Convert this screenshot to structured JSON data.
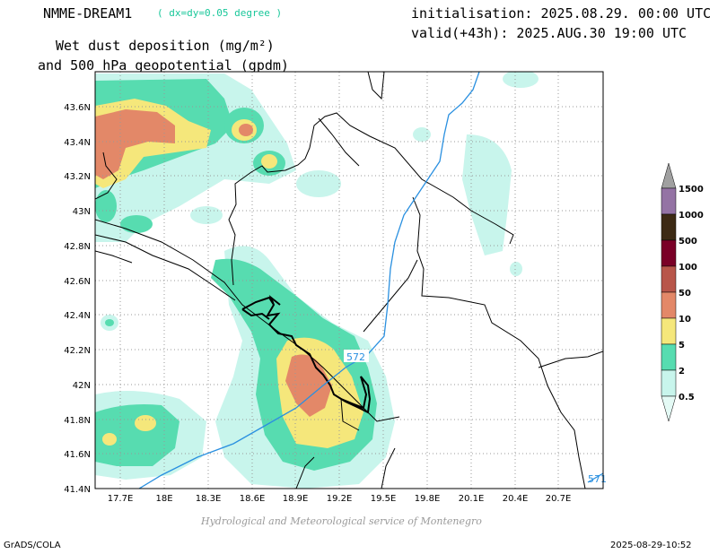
{
  "header": {
    "model": "NMME-DREAM1",
    "resolution": "( dx=dy=0.05 degree )",
    "initialisation": "initialisation: 2025.08.29. 00:00 UTC",
    "valid": "valid(+43h): 2025.AUG.30 19:00 UTC",
    "title_line1": "Wet dust deposition (mg/m²)",
    "title_line2": "and 500 hPa geopotential (gpdm)"
  },
  "map": {
    "lat_labels": [
      "43.6N",
      "43.4N",
      "43.2N",
      "43N",
      "42.8N",
      "42.6N",
      "42.4N",
      "42.2N",
      "42N",
      "41.8N",
      "41.6N",
      "41.4N"
    ],
    "lon_labels": [
      "17.7E",
      "18E",
      "18.3E",
      "18.6E",
      "18.9E",
      "19.2E",
      "19.5E",
      "19.8E",
      "20.1E",
      "20.4E",
      "20.7E"
    ],
    "contour_labels": [
      "572",
      "571"
    ]
  },
  "colorbar": {
    "labels": [
      "1500",
      "1000",
      "500",
      "100",
      "50",
      "10",
      "5",
      "2",
      "0.5"
    ],
    "colors": [
      "#a0a0a0",
      "#9473a4",
      "#3d2a14",
      "#7a0027",
      "#b8564a",
      "#e38868",
      "#f5e77b",
      "#57dcb0",
      "#c8f5ec",
      "#e4faf5"
    ]
  },
  "footer": {
    "credit": "Hydrological and Meteorological service of Montenegro",
    "software": "GrADS/COLA",
    "timestamp": "2025-08-29-10:52"
  }
}
